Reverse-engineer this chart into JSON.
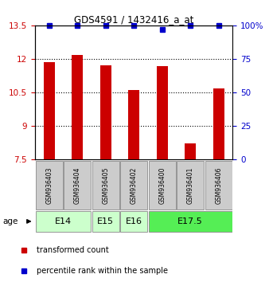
{
  "title": "GDS4591 / 1432416_a_at",
  "samples": [
    "GSM936403",
    "GSM936404",
    "GSM936405",
    "GSM936402",
    "GSM936400",
    "GSM936401",
    "GSM936406"
  ],
  "red_values": [
    11.85,
    12.18,
    11.72,
    10.62,
    11.68,
    8.22,
    10.68
  ],
  "blue_values": [
    100,
    100,
    100,
    100,
    97,
    100,
    100
  ],
  "ylim_left": [
    7.5,
    13.5
  ],
  "ylim_right": [
    0,
    100
  ],
  "yticks_left": [
    7.5,
    9.0,
    10.5,
    12.0,
    13.5
  ],
  "ytick_labels_left": [
    "7.5",
    "9",
    "10.5",
    "12",
    "13.5"
  ],
  "yticks_right": [
    0,
    25,
    50,
    75,
    100
  ],
  "ytick_labels_right": [
    "0",
    "25",
    "50",
    "75",
    "100%"
  ],
  "dotted_lines": [
    9.0,
    10.5,
    12.0
  ],
  "age_groups": [
    {
      "label": "E14",
      "col_indices": [
        0,
        1
      ],
      "color": "#ccffcc"
    },
    {
      "label": "E15",
      "col_indices": [
        2
      ],
      "color": "#ccffcc"
    },
    {
      "label": "E16",
      "col_indices": [
        3
      ],
      "color": "#ccffcc"
    },
    {
      "label": "E17.5",
      "col_indices": [
        4,
        5,
        6
      ],
      "color": "#55ee55"
    }
  ],
  "bar_color": "#cc0000",
  "blue_marker_color": "#0000cc",
  "sample_box_color": "#cccccc",
  "legend_red_label": "transformed count",
  "legend_blue_label": "percentile rank within the sample",
  "age_label": "age",
  "ylabel_left_color": "#cc0000",
  "ylabel_right_color": "#0000cc",
  "bar_width": 0.4,
  "bar_baseline": 7.5
}
